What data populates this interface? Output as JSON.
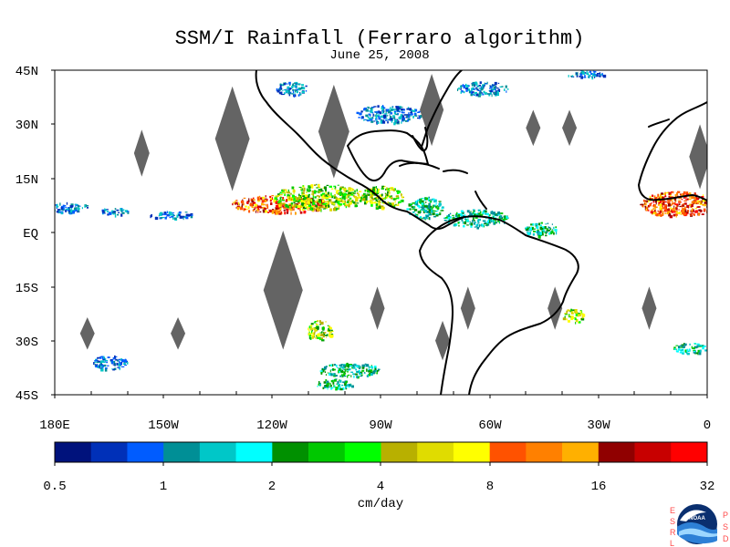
{
  "title": "SSM/I Rainfall (Ferraro algorithm)",
  "subtitle": "June 25, 2008",
  "map": {
    "lat_ticks": [
      {
        "value": 45,
        "label": "45N"
      },
      {
        "value": 30,
        "label": "30N"
      },
      {
        "value": 15,
        "label": "15N"
      },
      {
        "value": 0,
        "label": "EQ"
      },
      {
        "value": -15,
        "label": "15S"
      },
      {
        "value": -30,
        "label": "30S"
      },
      {
        "value": -45,
        "label": "45S"
      }
    ],
    "lon_ticks": [
      {
        "value": -180,
        "label": "180E"
      },
      {
        "value": -150,
        "label": "150W"
      },
      {
        "value": -120,
        "label": "120W"
      },
      {
        "value": -90,
        "label": "90W"
      },
      {
        "value": -60,
        "label": "60W"
      },
      {
        "value": -30,
        "label": "30W"
      },
      {
        "value": 0,
        "label": "0"
      }
    ],
    "extent": {
      "lon_min": -180,
      "lon_max": 0,
      "lat_min": -45,
      "lat_max": 45
    },
    "missing_swath_color": "#646464",
    "coast_color": "#000000",
    "missing_swaths": [
      {
        "lon": -156,
        "lat": 22,
        "h": 13
      },
      {
        "lon": -131,
        "lat": 26,
        "h": 29
      },
      {
        "lon": -103,
        "lat": 28,
        "h": 26
      },
      {
        "lon": -76,
        "lat": 34,
        "h": 20
      },
      {
        "lon": -48,
        "lat": 29,
        "h": 10
      },
      {
        "lon": -38,
        "lat": 29,
        "h": 10
      },
      {
        "lon": -2,
        "lat": 21,
        "h": 18
      },
      {
        "lon": -171,
        "lat": -28,
        "h": 9
      },
      {
        "lon": -146,
        "lat": -28,
        "h": 9
      },
      {
        "lon": -117,
        "lat": -16,
        "h": 33
      },
      {
        "lon": -91,
        "lat": -21,
        "h": 12
      },
      {
        "lon": -66,
        "lat": -21,
        "h": 12
      },
      {
        "lon": -42,
        "lat": -21,
        "h": 12
      },
      {
        "lon": -16,
        "lat": -21,
        "h": 12
      },
      {
        "lon": -73,
        "lat": -30,
        "h": 11
      }
    ],
    "rain_clusters": [
      {
        "lon": -118,
        "lat": 8,
        "w": 27,
        "h": 5,
        "level": 4
      },
      {
        "lon": -107,
        "lat": 10,
        "w": 26,
        "h": 7,
        "level": 3
      },
      {
        "lon": -90,
        "lat": 10,
        "w": 12,
        "h": 6,
        "level": 3
      },
      {
        "lon": -78,
        "lat": 7,
        "w": 10,
        "h": 6,
        "level": 2
      },
      {
        "lon": -64,
        "lat": 4,
        "w": 18,
        "h": 5,
        "level": 2
      },
      {
        "lon": -46,
        "lat": 1,
        "w": 9,
        "h": 4,
        "level": 2
      },
      {
        "lon": -8,
        "lat": 8,
        "w": 22,
        "h": 7,
        "level": 4
      },
      {
        "lon": -176,
        "lat": 7,
        "w": 10,
        "h": 3,
        "level": 1
      },
      {
        "lon": -164,
        "lat": 6,
        "w": 8,
        "h": 2,
        "level": 1
      },
      {
        "lon": -148,
        "lat": 5,
        "w": 12,
        "h": 2,
        "level": 1
      },
      {
        "lon": -107,
        "lat": -27,
        "w": 7,
        "h": 6,
        "level": 3
      },
      {
        "lon": -99,
        "lat": -38,
        "w": 17,
        "h": 4,
        "level": 2
      },
      {
        "lon": -103,
        "lat": -42,
        "w": 10,
        "h": 3,
        "level": 2
      },
      {
        "lon": -165,
        "lat": -36,
        "w": 10,
        "h": 4,
        "level": 1
      },
      {
        "lon": -37,
        "lat": -23,
        "w": 6,
        "h": 4,
        "level": 3
      },
      {
        "lon": -5,
        "lat": -32,
        "w": 9,
        "h": 3,
        "level": 2
      },
      {
        "lon": -88,
        "lat": 33,
        "w": 18,
        "h": 5,
        "level": 1
      },
      {
        "lon": -115,
        "lat": 40,
        "w": 9,
        "h": 4,
        "level": 1
      },
      {
        "lon": -62,
        "lat": 40,
        "w": 14,
        "h": 4,
        "level": 1
      },
      {
        "lon": -34,
        "lat": 44,
        "w": 12,
        "h": 2,
        "level": 1
      }
    ]
  },
  "legend": {
    "ticks": [
      "0.5",
      "1",
      "2",
      "4",
      "8",
      "16",
      "32"
    ],
    "label": "cm/day",
    "colors": [
      "#00127c",
      "#0030b8",
      "#005cff",
      "#008f96",
      "#00c7c8",
      "#00ffff",
      "#009000",
      "#00c800",
      "#00ff00",
      "#b8b000",
      "#e0dc00",
      "#ffff00",
      "#ff5200",
      "#ff8000",
      "#ffb000",
      "#900000",
      "#c80000",
      "#ff0000"
    ]
  },
  "logo": {
    "left_letters": [
      "E",
      "S",
      "R",
      "L"
    ],
    "right_letters": [
      "P",
      "S",
      "D"
    ],
    "center_text": "NOAA",
    "colors": {
      "dark": "#0a2f6f",
      "mid": "#2d80d6",
      "light": "#9dd7ff",
      "gull": "#ffffff",
      "letter": "#ff4b4b"
    }
  }
}
